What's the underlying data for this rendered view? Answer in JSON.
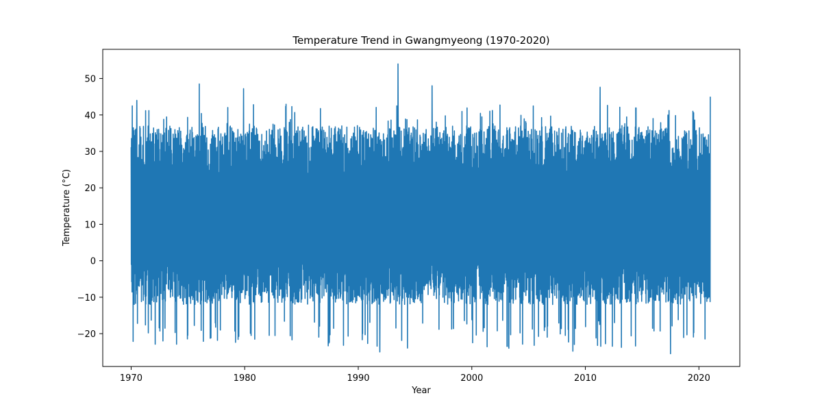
{
  "chart_data": {
    "type": "line",
    "title": "Temperature Trend in Gwangmyeong (1970-2020)",
    "xlabel": "Year",
    "ylabel": "Temperature (°C)",
    "xlim": [
      1967.5,
      2023.6
    ],
    "ylim": [
      -29.0,
      58.0
    ],
    "xticks": [
      1970,
      1980,
      1990,
      2000,
      2010,
      2020
    ],
    "yticks": [
      -20,
      -10,
      0,
      10,
      20,
      30,
      40,
      50
    ],
    "grid": false,
    "series": [
      {
        "color": "#1f77b4",
        "x_start": 1970.0,
        "x_end": 2021.0,
        "typical_band": [
          -6.0,
          31.0
        ],
        "notable_points": [
          {
            "x": 1970.1,
            "y": 42.5
          },
          {
            "x": 1970.5,
            "y": 44.0
          },
          {
            "x": 1972.8,
            "y": -22.0
          },
          {
            "x": 1976.0,
            "y": 48.5
          },
          {
            "x": 1979.9,
            "y": 47.2
          },
          {
            "x": 1988.7,
            "y": -23.2
          },
          {
            "x": 1991.9,
            "y": -25.0
          },
          {
            "x": 1993.5,
            "y": 54.0
          },
          {
            "x": 1996.5,
            "y": 48.0
          },
          {
            "x": 2003.1,
            "y": -23.5
          },
          {
            "x": 2008.9,
            "y": -24.8
          },
          {
            "x": 2011.3,
            "y": 47.6
          },
          {
            "x": 2017.5,
            "y": -25.5
          },
          {
            "x": 2021.0,
            "y": 45.0
          }
        ]
      }
    ]
  }
}
